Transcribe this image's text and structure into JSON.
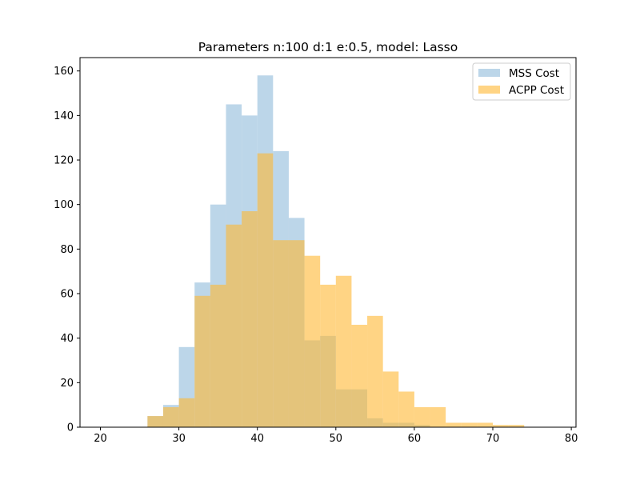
{
  "chart_data": {
    "type": "bar",
    "title": "Parameters n:100 d:1 e:0.5, model: Lasso",
    "xlabel": "",
    "ylabel": "",
    "xlim": [
      17.4,
      80.6
    ],
    "ylim": [
      0,
      166
    ],
    "x_ticks": [
      20,
      30,
      40,
      50,
      60,
      70,
      80
    ],
    "y_ticks": [
      0,
      20,
      40,
      60,
      80,
      100,
      120,
      140,
      160
    ],
    "grid": false,
    "legend_position": "top-right",
    "series": [
      {
        "name": "MSS Cost",
        "color": "#a6c8e2",
        "opacity": 0.75,
        "bin_edges": [
          26,
          28,
          30,
          32,
          34,
          36,
          38,
          40,
          42,
          44,
          46,
          48,
          50,
          52,
          54,
          56,
          58,
          60,
          62
        ],
        "counts": [
          5,
          10,
          36,
          65,
          100,
          145,
          140,
          158,
          124,
          94,
          39,
          41,
          17,
          17,
          4,
          2,
          2,
          1
        ]
      },
      {
        "name": "ACPP Cost",
        "color": "#ffb732",
        "opacity": 0.6,
        "bin_edges": [
          26,
          28,
          30,
          32,
          34,
          36,
          38,
          40,
          42,
          44,
          46,
          48,
          50,
          52,
          54,
          56,
          58,
          60,
          62,
          64,
          66,
          68,
          70,
          72,
          74
        ],
        "counts": [
          5,
          9,
          13,
          59,
          64,
          91,
          97,
          123,
          84,
          84,
          77,
          64,
          68,
          46,
          50,
          25,
          16,
          9,
          9,
          2,
          2,
          2,
          1,
          1
        ]
      }
    ]
  }
}
